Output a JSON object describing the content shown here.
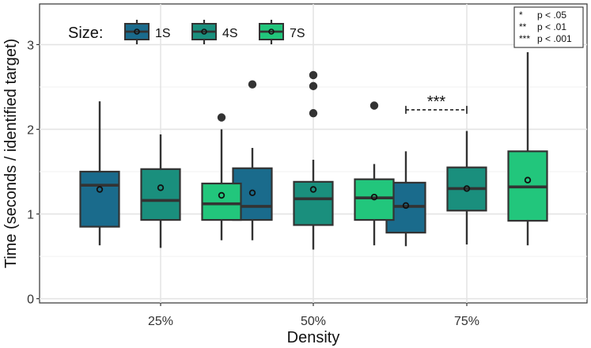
{
  "chart_data": {
    "type": "boxplot",
    "xlabel": "Density",
    "ylabel": "Time (seconds / identified target)",
    "ylim": [
      -0.05,
      3.48
    ],
    "yticks": [
      0,
      1,
      2,
      3
    ],
    "grid": true,
    "categories": [
      "25%",
      "50%",
      "75%"
    ],
    "legend": {
      "title": "Size:",
      "placement": "top-left",
      "entries": [
        {
          "label": "1S",
          "color": "#1a6b8c"
        },
        {
          "label": "4S",
          "color": "#1a8f7d"
        },
        {
          "label": "7S",
          "color": "#22c67c"
        }
      ]
    },
    "series": [
      {
        "name": "1S",
        "color": "#1a6b8c",
        "boxes": [
          {
            "category": "25%",
            "min": 0.63,
            "q1": 0.85,
            "median": 1.34,
            "q3": 1.5,
            "max": 2.33,
            "mean": 1.29,
            "outliers": []
          },
          {
            "category": "50%",
            "min": 0.69,
            "q1": 0.93,
            "median": 1.09,
            "q3": 1.54,
            "max": 1.78,
            "mean": 1.25,
            "outliers": [
              2.53
            ]
          },
          {
            "category": "75%",
            "min": 0.62,
            "q1": 0.78,
            "median": 1.09,
            "q3": 1.37,
            "max": 1.74,
            "mean": 1.1,
            "outliers": []
          }
        ]
      },
      {
        "name": "4S",
        "color": "#1a8f7d",
        "boxes": [
          {
            "category": "25%",
            "min": 0.6,
            "q1": 0.93,
            "median": 1.16,
            "q3": 1.53,
            "max": 1.94,
            "mean": 1.31,
            "outliers": []
          },
          {
            "category": "50%",
            "min": 0.58,
            "q1": 0.87,
            "median": 1.18,
            "q3": 1.38,
            "max": 1.64,
            "mean": 1.29,
            "outliers": [
              2.19,
              2.51,
              2.64
            ]
          },
          {
            "category": "75%",
            "min": 0.64,
            "q1": 1.04,
            "median": 1.3,
            "q3": 1.55,
            "max": 1.98,
            "mean": 1.3,
            "outliers": []
          }
        ]
      },
      {
        "name": "7S",
        "color": "#22c67c",
        "boxes": [
          {
            "category": "25%",
            "min": 0.69,
            "q1": 0.93,
            "median": 1.12,
            "q3": 1.36,
            "max": 2.0,
            "mean": 1.22,
            "outliers": [
              2.14
            ]
          },
          {
            "category": "50%",
            "min": 0.63,
            "q1": 0.93,
            "median": 1.19,
            "q3": 1.41,
            "max": 1.59,
            "mean": 1.2,
            "outliers": [
              2.28
            ]
          },
          {
            "category": "75%",
            "min": 0.63,
            "q1": 0.92,
            "median": 1.32,
            "q3": 1.74,
            "max": 2.91,
            "mean": 1.4,
            "outliers": []
          }
        ]
      }
    ],
    "significance": [
      {
        "category": "75%",
        "from": "1S",
        "to": "4S",
        "y": 2.23,
        "label": "***"
      }
    ],
    "significance_key": [
      {
        "stars": "*",
        "text": "p < .05"
      },
      {
        "stars": "**",
        "text": "p < .01"
      },
      {
        "stars": "***",
        "text": "p < .001"
      }
    ]
  }
}
